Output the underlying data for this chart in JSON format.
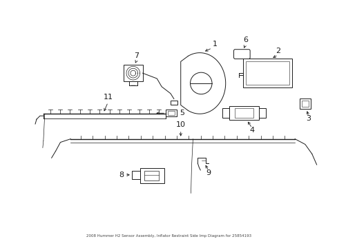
{
  "title": "2008 Hummer H2 Sensor Assembly, Inflator Restraint Side Imp Diagram for 25854193",
  "background_color": "#ffffff",
  "fig_w": 4.89,
  "fig_h": 3.6,
  "dpi": 100
}
